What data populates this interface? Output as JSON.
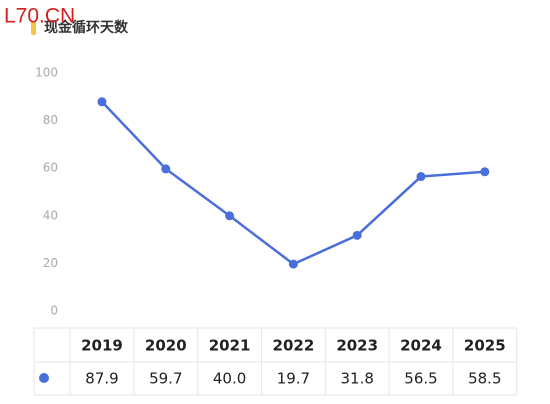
{
  "watermark": "L70.CN",
  "chart_data": {
    "type": "line",
    "title": "现金循环天数",
    "categories": [
      "2019",
      "2020",
      "2021",
      "2022",
      "2023",
      "2024",
      "2025"
    ],
    "values": [
      87.9,
      59.7,
      40.0,
      19.7,
      31.8,
      56.5,
      58.5
    ],
    "value_labels": [
      "87.9",
      "59.7",
      "40.0",
      "19.7",
      "31.8",
      "56.5",
      "58.5"
    ],
    "color": "#4a6fdc",
    "ylim": [
      0,
      100
    ],
    "yticks": [
      0,
      20,
      40,
      60,
      80,
      100
    ],
    "grid": false
  }
}
